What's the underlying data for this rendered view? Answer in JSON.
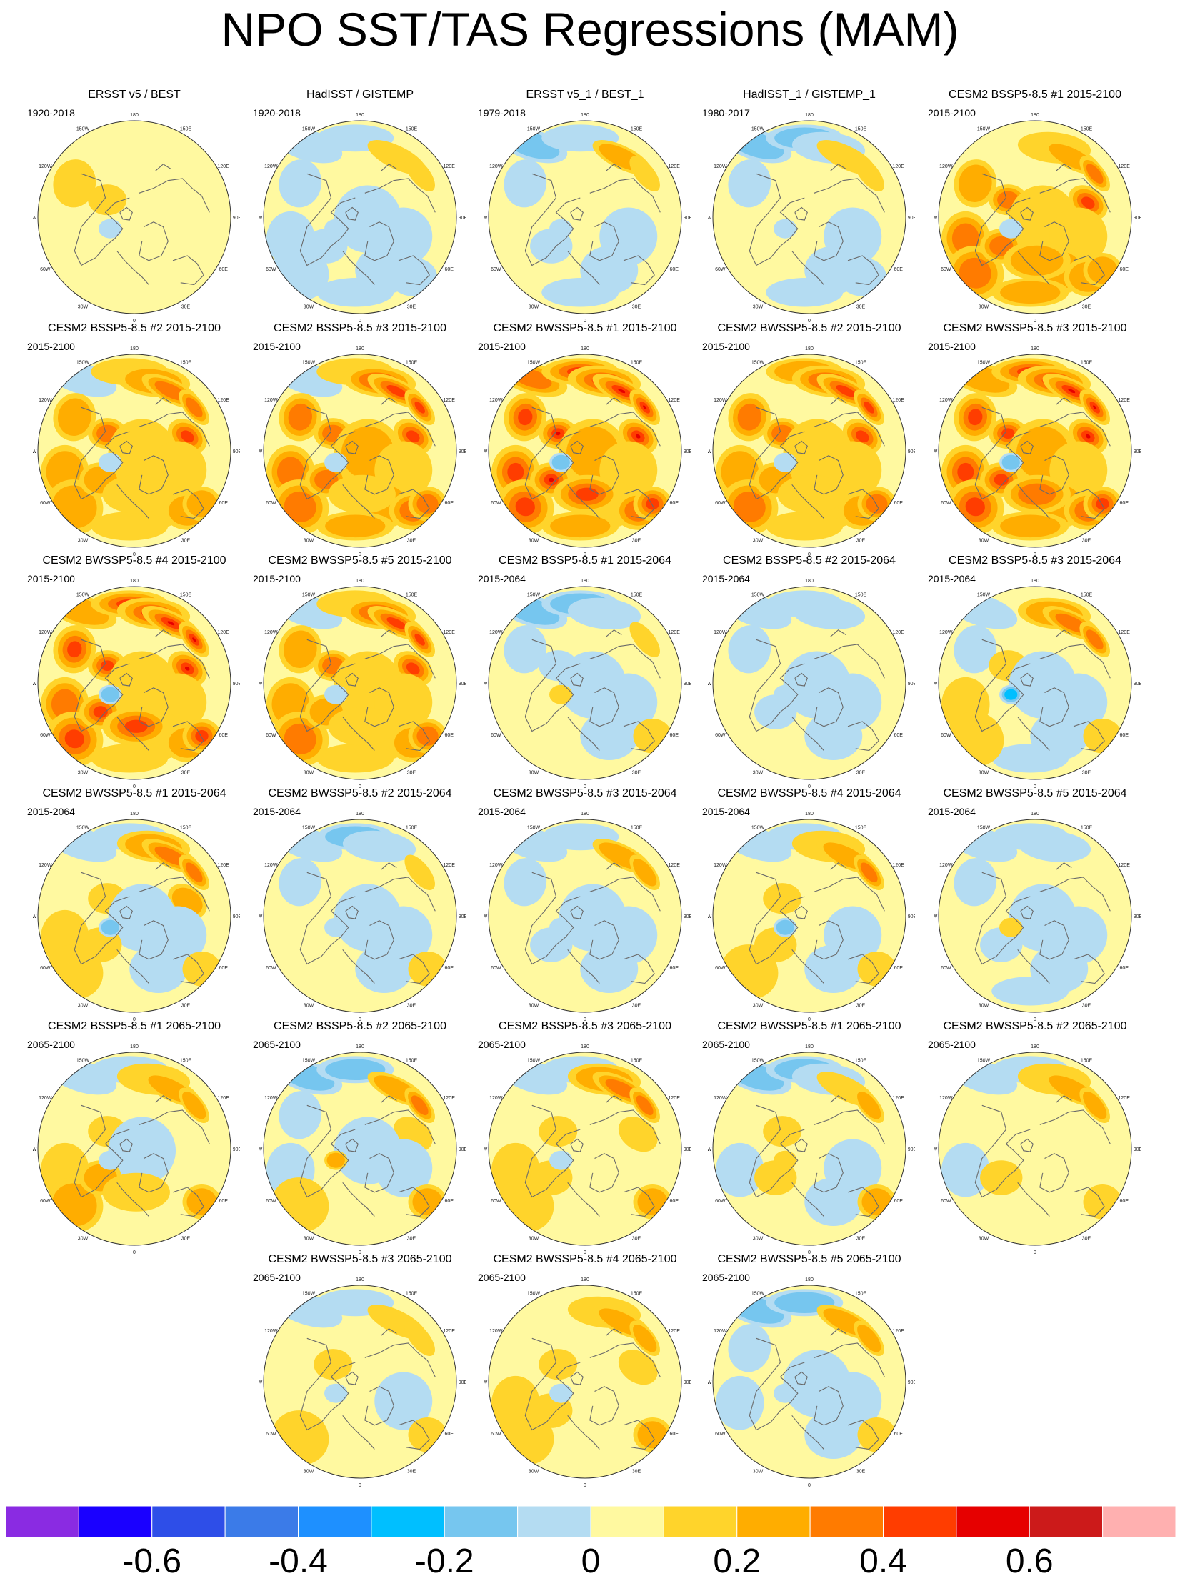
{
  "title": "NPO SST/TAS Regressions (MAM)",
  "map_labels": {
    "lon_labels": [
      "180",
      "150E",
      "120E",
      "90E",
      "60E",
      "30E",
      "0",
      "30W",
      "60W",
      "90W",
      "120W",
      "150W"
    ]
  },
  "colorbar": {
    "colors": [
      "#8a2be2",
      "#1a00ff",
      "#2e4ee8",
      "#3b7be8",
      "#1e90ff",
      "#00bfff",
      "#76c6ef",
      "#b4dcf2",
      "#fff9a0",
      "#ffd42b",
      "#ffad00",
      "#ff7b00",
      "#ff3d00",
      "#e60000",
      "#cc1a1a",
      "#ffb0b0"
    ],
    "tick_labels": [
      "-0.6",
      "-0.4",
      "-0.2",
      "0",
      "0.2",
      "0.4",
      "0.6"
    ]
  },
  "panels": [
    {
      "title": "ERSST v5 / BEST",
      "period": "1920-2018",
      "pattern": [
        0,
        0,
        0,
        0,
        0,
        0,
        1,
        1,
        0,
        0,
        0,
        0,
        0,
        0,
        0,
        0,
        -1,
        0,
        0
      ]
    },
    {
      "title": "HadISST / GISTEMP",
      "period": "1920-2018",
      "pattern": [
        -1,
        -1,
        0,
        1,
        1,
        0,
        -1,
        0,
        -1,
        -1,
        -1,
        -1,
        -1,
        -1,
        -1,
        -1,
        -1,
        0,
        0
      ]
    },
    {
      "title": "ERSST v5_1 / BEST_1",
      "period": "1979-2018",
      "pattern": [
        -2,
        -1,
        0,
        2,
        1,
        0,
        -1,
        0,
        0,
        -1,
        -1,
        -1,
        0,
        0,
        0,
        -1,
        -1,
        0,
        0
      ]
    },
    {
      "title": "HadISST_1 / GISTEMP_1",
      "period": "1980-2017",
      "pattern": [
        -2,
        -2,
        -1,
        1,
        1,
        0,
        -1,
        0,
        0,
        -1,
        -1,
        -1,
        -1,
        0,
        0,
        0,
        -1,
        0,
        0
      ]
    },
    {
      "title": "CESM2 BSSP5-8.5 #1 2015-2100",
      "period": "2015-2100",
      "pattern": [
        0,
        0,
        1,
        2,
        3,
        4,
        2,
        3,
        1,
        1,
        2,
        2,
        2,
        3,
        3,
        3,
        -1,
        2,
        2
      ]
    },
    {
      "title": "CESM2 BSSP5-8.5 #2 2015-2100",
      "period": "2015-2100",
      "pattern": [
        -1,
        1,
        2,
        3,
        3,
        4,
        2,
        3,
        1,
        1,
        1,
        1,
        2,
        2,
        2,
        2,
        -1,
        2,
        1
      ]
    },
    {
      "title": "CESM2 BSSP5-8.5 #3 2015-2100",
      "period": "2015-2100",
      "pattern": [
        -1,
        1,
        3,
        4,
        4,
        4,
        3,
        3,
        2,
        1,
        2,
        2,
        3,
        3,
        3,
        3,
        -1,
        3,
        1
      ]
    },
    {
      "title": "CESM2 BWSSP5-8.5 #1 2015-2100",
      "period": "2015-2100",
      "pattern": [
        3,
        4,
        4,
        6,
        6,
        5,
        4,
        5,
        2,
        1,
        1,
        2,
        3,
        4,
        4,
        5,
        -2,
        4,
        4
      ]
    },
    {
      "title": "CESM2 BWSSP5-8.5 #2 2015-2100",
      "period": "2015-2100",
      "pattern": [
        0,
        2,
        3,
        4,
        4,
        4,
        3,
        3,
        1,
        1,
        1,
        1,
        2,
        2,
        3,
        2,
        -1,
        3,
        1
      ]
    },
    {
      "title": "CESM2 BWSSP5-8.5 #3 2015-2100",
      "period": "2015-2100",
      "pattern": [
        2,
        4,
        4,
        6,
        5,
        5,
        4,
        4,
        2,
        1,
        2,
        2,
        3,
        4,
        4,
        4,
        -2,
        4,
        3
      ]
    },
    {
      "title": "CESM2 BWSSP5-8.5 #4 2015-2100",
      "period": "2015-2100",
      "pattern": [
        2,
        4,
        5,
        6,
        5,
        5,
        4,
        4,
        1,
        1,
        1,
        1,
        2,
        3,
        4,
        4,
        -2,
        4,
        4
      ]
    },
    {
      "title": "CESM2 BWSSP5-8.5 #5 2015-2100",
      "period": "2015-2100",
      "pattern": [
        -1,
        1,
        3,
        4,
        4,
        4,
        2,
        3,
        1,
        1,
        1,
        1,
        2,
        2,
        3,
        2,
        -1,
        3,
        1
      ]
    },
    {
      "title": "CESM2 BSSP5-8.5 #1 2015-2064",
      "period": "2015-2064",
      "pattern": [
        -2,
        -2,
        -1,
        0,
        1,
        0,
        -1,
        -1,
        -1,
        -1,
        -1,
        0,
        0,
        0,
        0,
        0,
        1,
        1,
        0
      ]
    },
    {
      "title": "CESM2 BSSP5-8.5 #2 2015-2064",
      "period": "2015-2064",
      "pattern": [
        -1,
        -1,
        -1,
        0,
        0,
        0,
        -1,
        0,
        -1,
        -1,
        -1,
        0,
        0,
        0,
        0,
        -1,
        -1,
        0,
        0
      ]
    },
    {
      "title": "CESM2 BSSP5-8.5 #3 2015-2064",
      "period": "2015-2064",
      "pattern": [
        -1,
        0,
        2,
        3,
        3,
        0,
        -1,
        1,
        -1,
        -1,
        -1,
        -1,
        0,
        1,
        1,
        0,
        -3,
        1,
        0
      ]
    },
    {
      "title": "CESM2 BWSSP5-8.5 #1 2015-2064",
      "period": "2015-2064",
      "pattern": [
        -1,
        -1,
        2,
        3,
        3,
        2,
        0,
        1,
        -1,
        -1,
        -1,
        0,
        0,
        1,
        1,
        1,
        -2,
        1,
        0
      ]
    },
    {
      "title": "CESM2 BWSSP5-8.5 #2 2015-2064",
      "period": "2015-2064",
      "pattern": [
        -1,
        -2,
        -1,
        0,
        1,
        0,
        -1,
        0,
        -1,
        -1,
        -1,
        0,
        0,
        0,
        0,
        0,
        -1,
        1,
        0
      ]
    },
    {
      "title": "CESM2 BWSSP5-8.5 #3 2015-2064",
      "period": "2015-2064",
      "pattern": [
        -1,
        -1,
        0,
        2,
        2,
        0,
        -1,
        0,
        -1,
        -1,
        -1,
        0,
        0,
        0,
        0,
        -1,
        -1,
        0,
        0
      ]
    },
    {
      "title": "CESM2 BWSSP5-8.5 #4 2015-2064",
      "period": "2015-2064",
      "pattern": [
        -1,
        -1,
        1,
        2,
        3,
        0,
        0,
        1,
        0,
        -1,
        -1,
        0,
        0,
        0,
        1,
        1,
        -2,
        1,
        0
      ]
    },
    {
      "title": "CESM2 BWSSP5-8.5 #5 2015-2064",
      "period": "2015-2064",
      "pattern": [
        -1,
        -1,
        -1,
        0,
        0,
        0,
        -1,
        0,
        -1,
        -1,
        -1,
        -1,
        0,
        0,
        0,
        -1,
        1,
        0,
        0
      ]
    },
    {
      "title": "CESM2 BSSP5-8.5 #1 2065-2100",
      "period": "2065-2100",
      "pattern": [
        -1,
        -1,
        1,
        2,
        2,
        0,
        0,
        1,
        -1,
        0,
        0,
        0,
        0,
        1,
        2,
        2,
        -1,
        2,
        1
      ]
    },
    {
      "title": "CESM2 BSSP5-8.5 #2 2065-2100",
      "period": "2065-2100",
      "pattern": [
        -2,
        -2,
        0,
        2,
        3,
        1,
        -1,
        0,
        -1,
        -1,
        0,
        0,
        0,
        -1,
        1,
        0,
        2,
        2,
        0
      ]
    },
    {
      "title": "CESM2 BSSP5-8.5 #3 2065-2100",
      "period": "2065-2100",
      "pattern": [
        -1,
        -1,
        2,
        3,
        3,
        1,
        0,
        1,
        0,
        0,
        0,
        0,
        0,
        1,
        1,
        1,
        -1,
        2,
        0
      ]
    },
    {
      "title": "CESM2 BWSSP5-8.5 #1 2065-2100",
      "period": "2065-2100",
      "pattern": [
        -2,
        -2,
        -1,
        1,
        2,
        0,
        0,
        1,
        0,
        -1,
        -1,
        0,
        0,
        -1,
        0,
        1,
        1,
        2,
        0
      ]
    },
    {
      "title": "CESM2 BWSSP5-8.5 #2 2065-2100",
      "period": "2065-2100",
      "pattern": [
        -1,
        -1,
        1,
        2,
        2,
        0,
        0,
        0,
        0,
        0,
        0,
        0,
        0,
        -1,
        0,
        1,
        0,
        1,
        0
      ]
    },
    {
      "title": "CESM2 BWSSP5-8.5 #3 2065-2100",
      "period": "2065-2100",
      "pattern": [
        -1,
        -1,
        0,
        1,
        1,
        0,
        0,
        1,
        0,
        -1,
        0,
        0,
        0,
        0,
        1,
        0,
        -1,
        1,
        0
      ]
    },
    {
      "title": "CESM2 BWSSP5-8.5 #4 2065-2100",
      "period": "2065-2100",
      "pattern": [
        0,
        0,
        1,
        2,
        2,
        1,
        0,
        1,
        0,
        0,
        0,
        0,
        0,
        1,
        1,
        1,
        -1,
        2,
        0
      ]
    },
    {
      "title": "CESM2 BWSSP5-8.5 #5 2065-2100",
      "period": "2065-2100",
      "pattern": [
        -2,
        -2,
        0,
        2,
        2,
        0,
        -1,
        0,
        -1,
        -1,
        -1,
        0,
        0,
        -1,
        0,
        0,
        -1,
        1,
        0
      ]
    }
  ]
}
